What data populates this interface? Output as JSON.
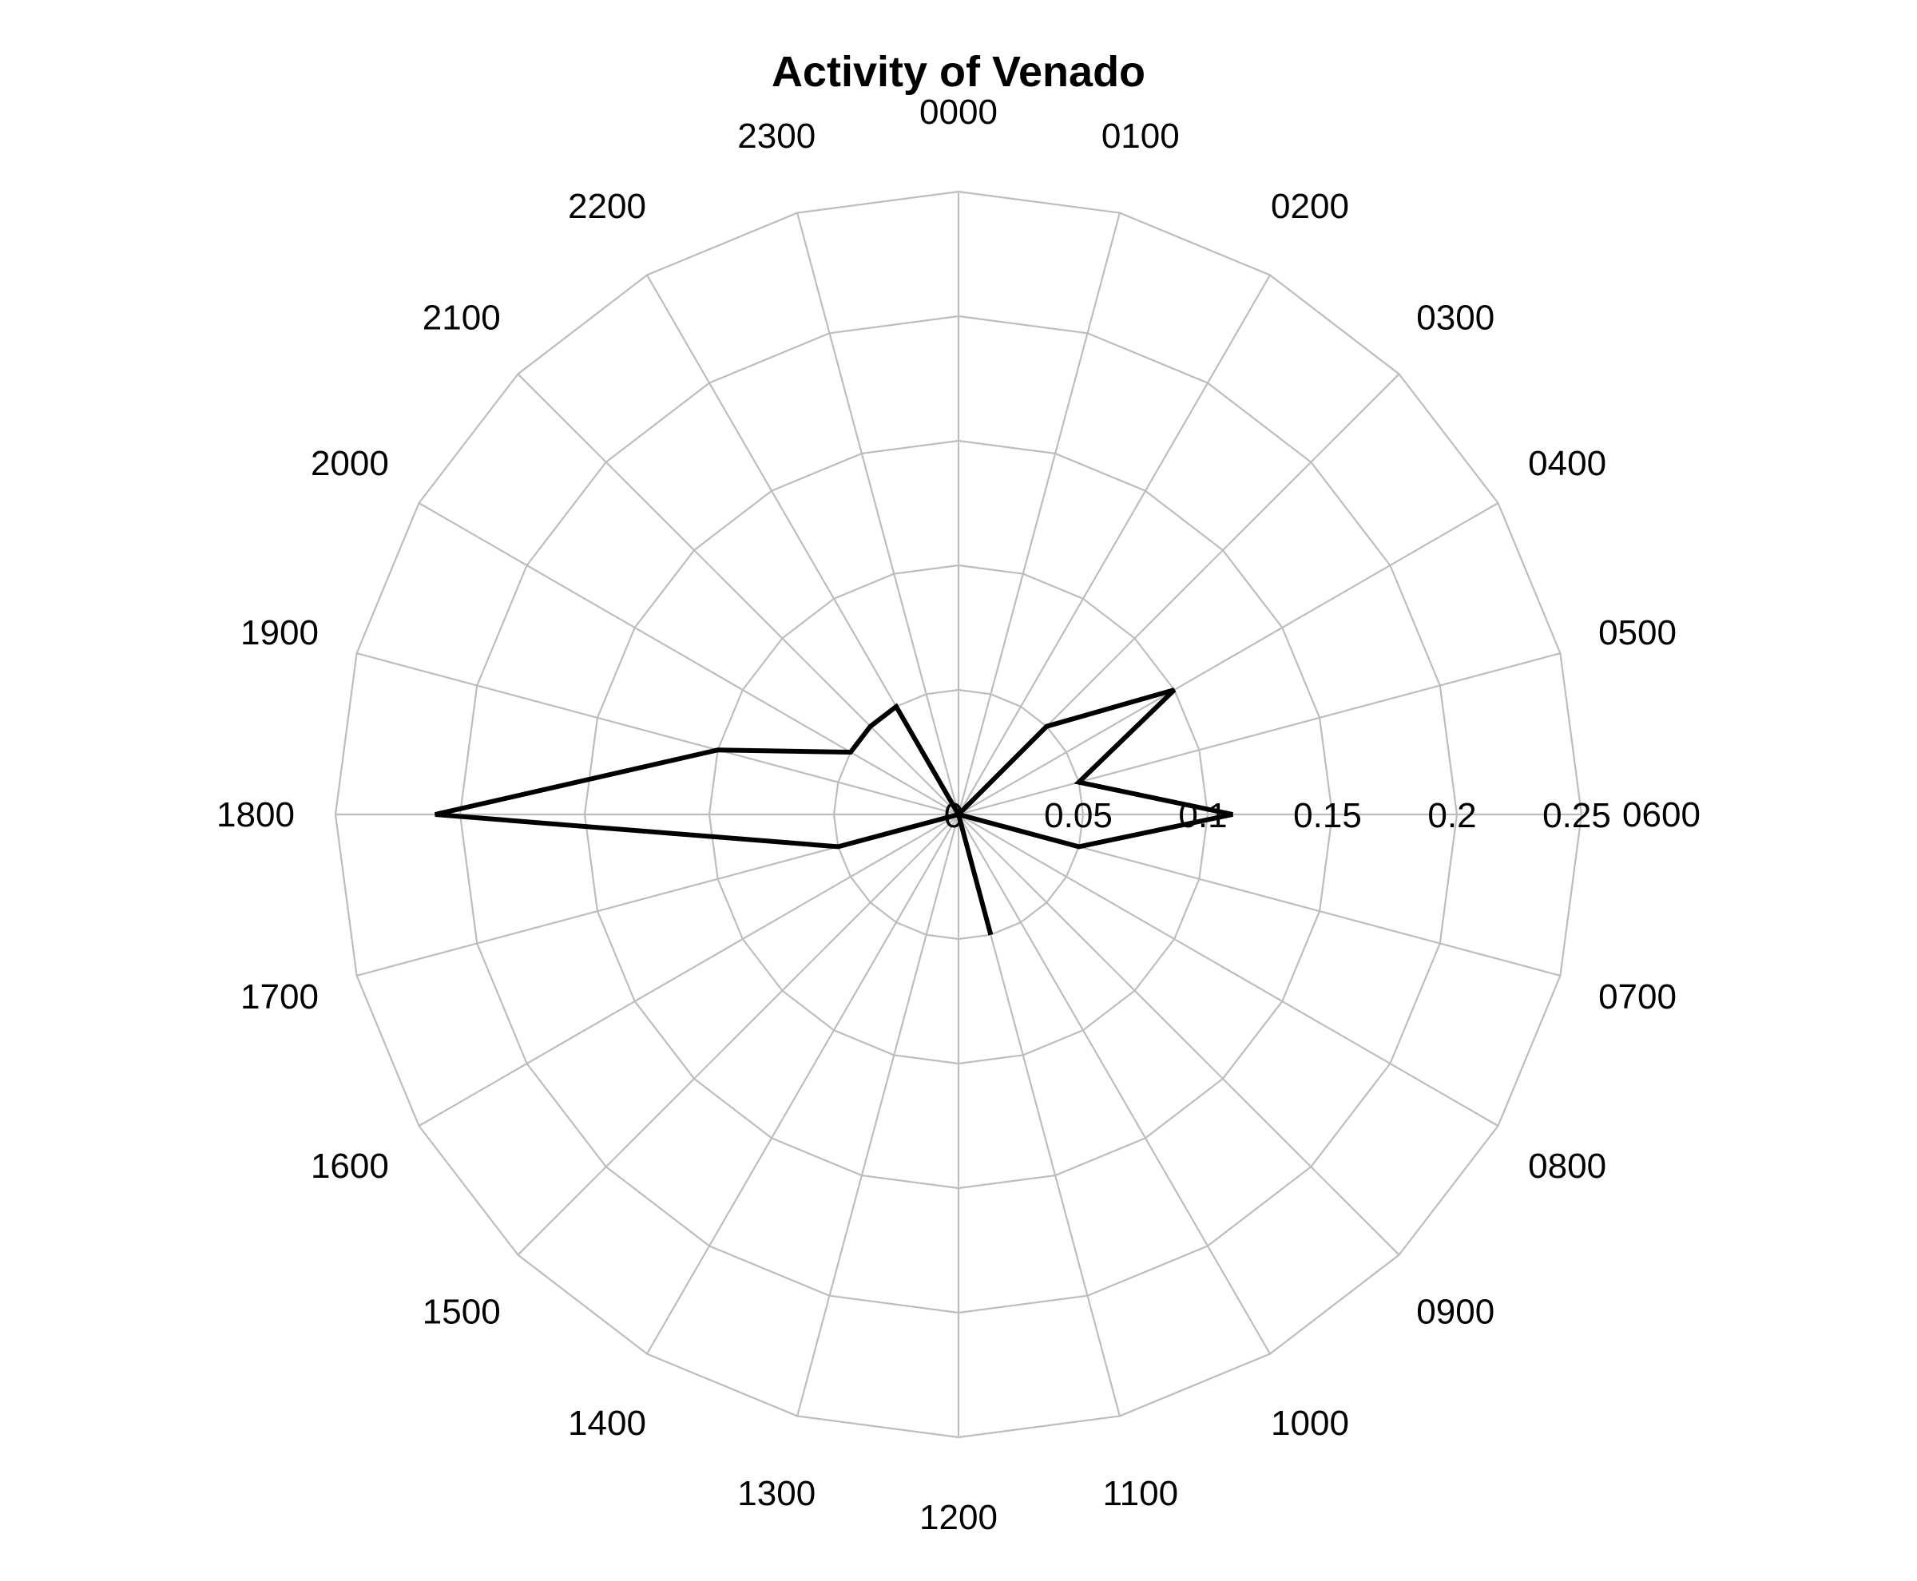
{
  "chart_data": {
    "type": "polar-line",
    "title": "Activity of Venado",
    "hour_labels": [
      "0000",
      "0100",
      "0200",
      "0300",
      "0400",
      "0500",
      "0600",
      "0700",
      "0800",
      "0900",
      "1000",
      "1100",
      "1200",
      "1300",
      "1400",
      "1500",
      "1600",
      "1700",
      "1800",
      "1900",
      "2000",
      "2100",
      "2200",
      "2300"
    ],
    "radial_ticks": [
      0,
      0.05,
      0.1,
      0.15,
      0.2,
      0.25
    ],
    "radial_tick_labels": [
      "0",
      "0.05",
      "0.1",
      "0.15",
      "0.2",
      "0.25"
    ],
    "rlim": [
      0,
      0.25
    ],
    "grid": true,
    "line_color": "#000000",
    "grid_color": "#bdbdbd",
    "series": [
      {
        "hours": [
          "0000",
          "0100",
          "0200",
          "0300",
          "0400",
          "0500",
          "0600",
          "0700",
          "0800",
          "0900",
          "1000",
          "1100",
          "1200",
          "1300",
          "1400",
          "1500",
          "1600",
          "1700",
          "1800",
          "1900",
          "2000",
          "2100",
          "2200",
          "2300"
        ],
        "values": [
          0,
          0,
          0,
          0.05,
          0.1,
          0.05,
          0.11,
          0.05,
          0,
          0,
          0,
          0.05,
          0,
          0,
          0,
          0,
          0,
          0.05,
          0.21,
          0.1,
          0.05,
          0.05,
          0.05,
          0
        ]
      }
    ]
  }
}
